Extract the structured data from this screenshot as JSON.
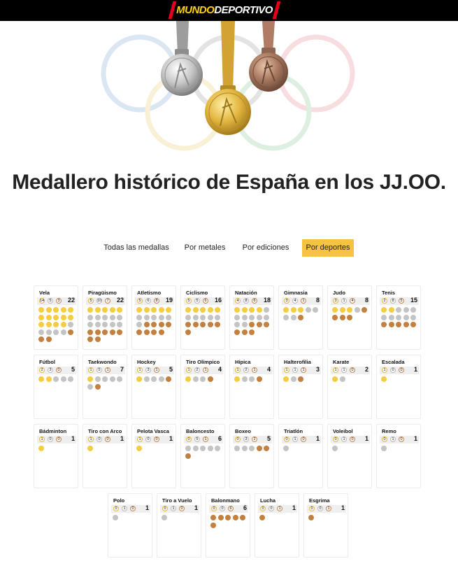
{
  "header": {
    "logo_part1": "MUNDO",
    "logo_part2": "DEPORTIVO"
  },
  "title": "Medallero histórico de España en los JJ.OO.",
  "tabs": [
    {
      "label": "Todas las medallas",
      "active": false
    },
    {
      "label": "Por metales",
      "active": false
    },
    {
      "label": "Por ediciones",
      "active": false
    },
    {
      "label": "Por deportes",
      "active": true
    }
  ],
  "colors": {
    "gold": "#f4cd43",
    "silver": "#c4c4c4",
    "bronze": "#c4803f",
    "active_tab": "#f5c242"
  },
  "sports": [
    {
      "name": "Vela",
      "gold": 14,
      "silver": 5,
      "bronze": 3,
      "total": 22
    },
    {
      "name": "Piragüismo",
      "gold": 5,
      "silver": 10,
      "bronze": 7,
      "total": 22
    },
    {
      "name": "Atletismo",
      "gold": 5,
      "silver": 6,
      "bronze": 8,
      "total": 19
    },
    {
      "name": "Ciclismo",
      "gold": 5,
      "silver": 5,
      "bronze": 6,
      "total": 16
    },
    {
      "name": "Natación",
      "gold": 4,
      "silver": 8,
      "bronze": 6,
      "total": 18
    },
    {
      "name": "Gimnasia",
      "gold": 3,
      "silver": 4,
      "bronze": 1,
      "total": 8
    },
    {
      "name": "Judo",
      "gold": 3,
      "silver": 1,
      "bronze": 4,
      "total": 8
    },
    {
      "name": "Tenis",
      "gold": 2,
      "silver": 8,
      "bronze": 5,
      "total": 15
    },
    {
      "name": "Fútbol",
      "gold": 2,
      "silver": 3,
      "bronze": 0,
      "total": 5
    },
    {
      "name": "Taekwondo",
      "gold": 1,
      "silver": 5,
      "bronze": 1,
      "total": 7
    },
    {
      "name": "Hockey",
      "gold": 1,
      "silver": 3,
      "bronze": 1,
      "total": 5
    },
    {
      "name": "Tiro Olímpico",
      "gold": 1,
      "silver": 2,
      "bronze": 1,
      "total": 4
    },
    {
      "name": "Hípica",
      "gold": 1,
      "silver": 2,
      "bronze": 1,
      "total": 4
    },
    {
      "name": "Halterofilia",
      "gold": 1,
      "silver": 1,
      "bronze": 1,
      "total": 3
    },
    {
      "name": "Karate",
      "gold": 1,
      "silver": 1,
      "bronze": 0,
      "total": 2
    },
    {
      "name": "Escalada",
      "gold": 1,
      "silver": 0,
      "bronze": 0,
      "total": 1
    },
    {
      "name": "Bádminton",
      "gold": 1,
      "silver": 0,
      "bronze": 0,
      "total": 1
    },
    {
      "name": "Tiro con Arco",
      "gold": 1,
      "silver": 0,
      "bronze": 0,
      "total": 1
    },
    {
      "name": "Pelota Vasca",
      "gold": 1,
      "silver": 0,
      "bronze": 0,
      "total": 1
    },
    {
      "name": "Baloncesto",
      "gold": 0,
      "silver": 5,
      "bronze": 1,
      "total": 6
    },
    {
      "name": "Boxeo",
      "gold": 0,
      "silver": 3,
      "bronze": 2,
      "total": 5
    },
    {
      "name": "Triatlón",
      "gold": 0,
      "silver": 1,
      "bronze": 0,
      "total": 1
    },
    {
      "name": "Voleibol",
      "gold": 0,
      "silver": 1,
      "bronze": 0,
      "total": 1
    },
    {
      "name": "Remo",
      "gold": 0,
      "silver": 1,
      "bronze": 0,
      "total": 1
    },
    {
      "name": "Polo",
      "gold": 0,
      "silver": 1,
      "bronze": 0,
      "total": 1
    },
    {
      "name": "Tiro a Vuelo",
      "gold": 0,
      "silver": 1,
      "bronze": 0,
      "total": 1
    },
    {
      "name": "Balonmano",
      "gold": 0,
      "silver": 0,
      "bronze": 6,
      "total": 6
    },
    {
      "name": "Lucha",
      "gold": 0,
      "silver": 0,
      "bronze": 1,
      "total": 1
    },
    {
      "name": "Esgrima",
      "gold": 0,
      "silver": 0,
      "bronze": 1,
      "total": 1
    }
  ]
}
